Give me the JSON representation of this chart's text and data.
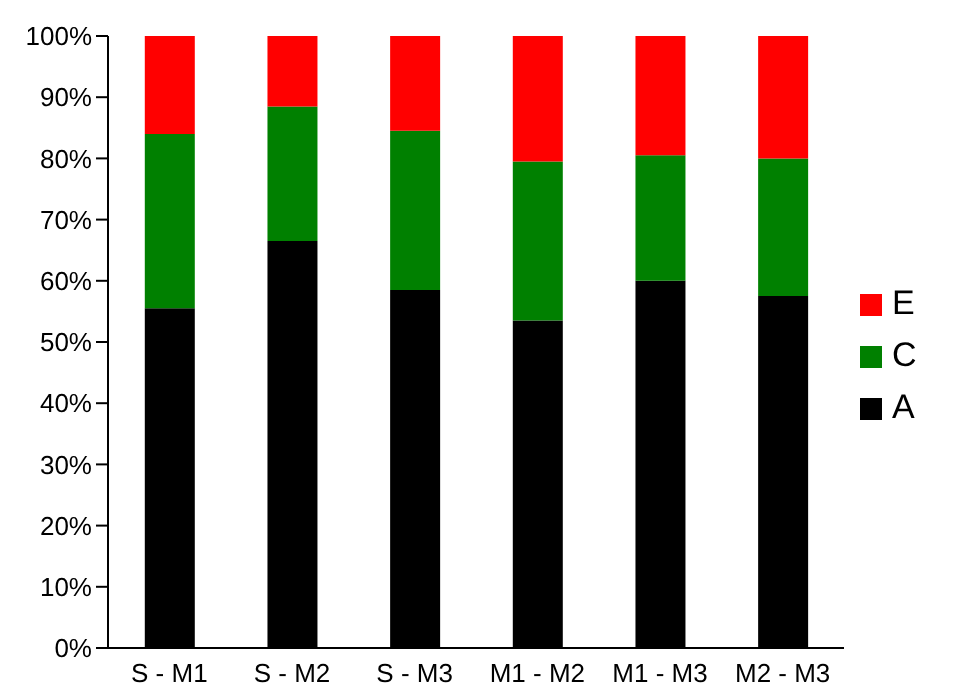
{
  "chart_data": {
    "type": "bar",
    "stacked": true,
    "categories": [
      "S - M1",
      "S - M2",
      "S - M3",
      "M1 - M2",
      "M1 - M3",
      "M2 - M3"
    ],
    "series": [
      {
        "name": "A",
        "color": "#000000",
        "values": [
          55.5,
          66.5,
          58.5,
          53.5,
          60,
          57.5
        ]
      },
      {
        "name": "C",
        "color": "#008000",
        "values": [
          28.5,
          22,
          26,
          26,
          20.5,
          22.5
        ]
      },
      {
        "name": "E",
        "color": "#ff0000",
        "values": [
          16,
          11.5,
          15.5,
          20.5,
          19.5,
          20
        ]
      }
    ],
    "ylim": [
      0,
      100
    ],
    "yticks": [
      {
        "value": 0,
        "label": "0%"
      },
      {
        "value": 10,
        "label": "10%"
      },
      {
        "value": 20,
        "label": "20%"
      },
      {
        "value": 30,
        "label": "30%"
      },
      {
        "value": 40,
        "label": "40%"
      },
      {
        "value": 50,
        "label": "50%"
      },
      {
        "value": 60,
        "label": "60%"
      },
      {
        "value": 70,
        "label": "70%"
      },
      {
        "value": 80,
        "label": "80%"
      },
      {
        "value": 90,
        "label": "90%"
      },
      {
        "value": 100,
        "label": "100%"
      }
    ],
    "grid": false,
    "legend": "right"
  }
}
